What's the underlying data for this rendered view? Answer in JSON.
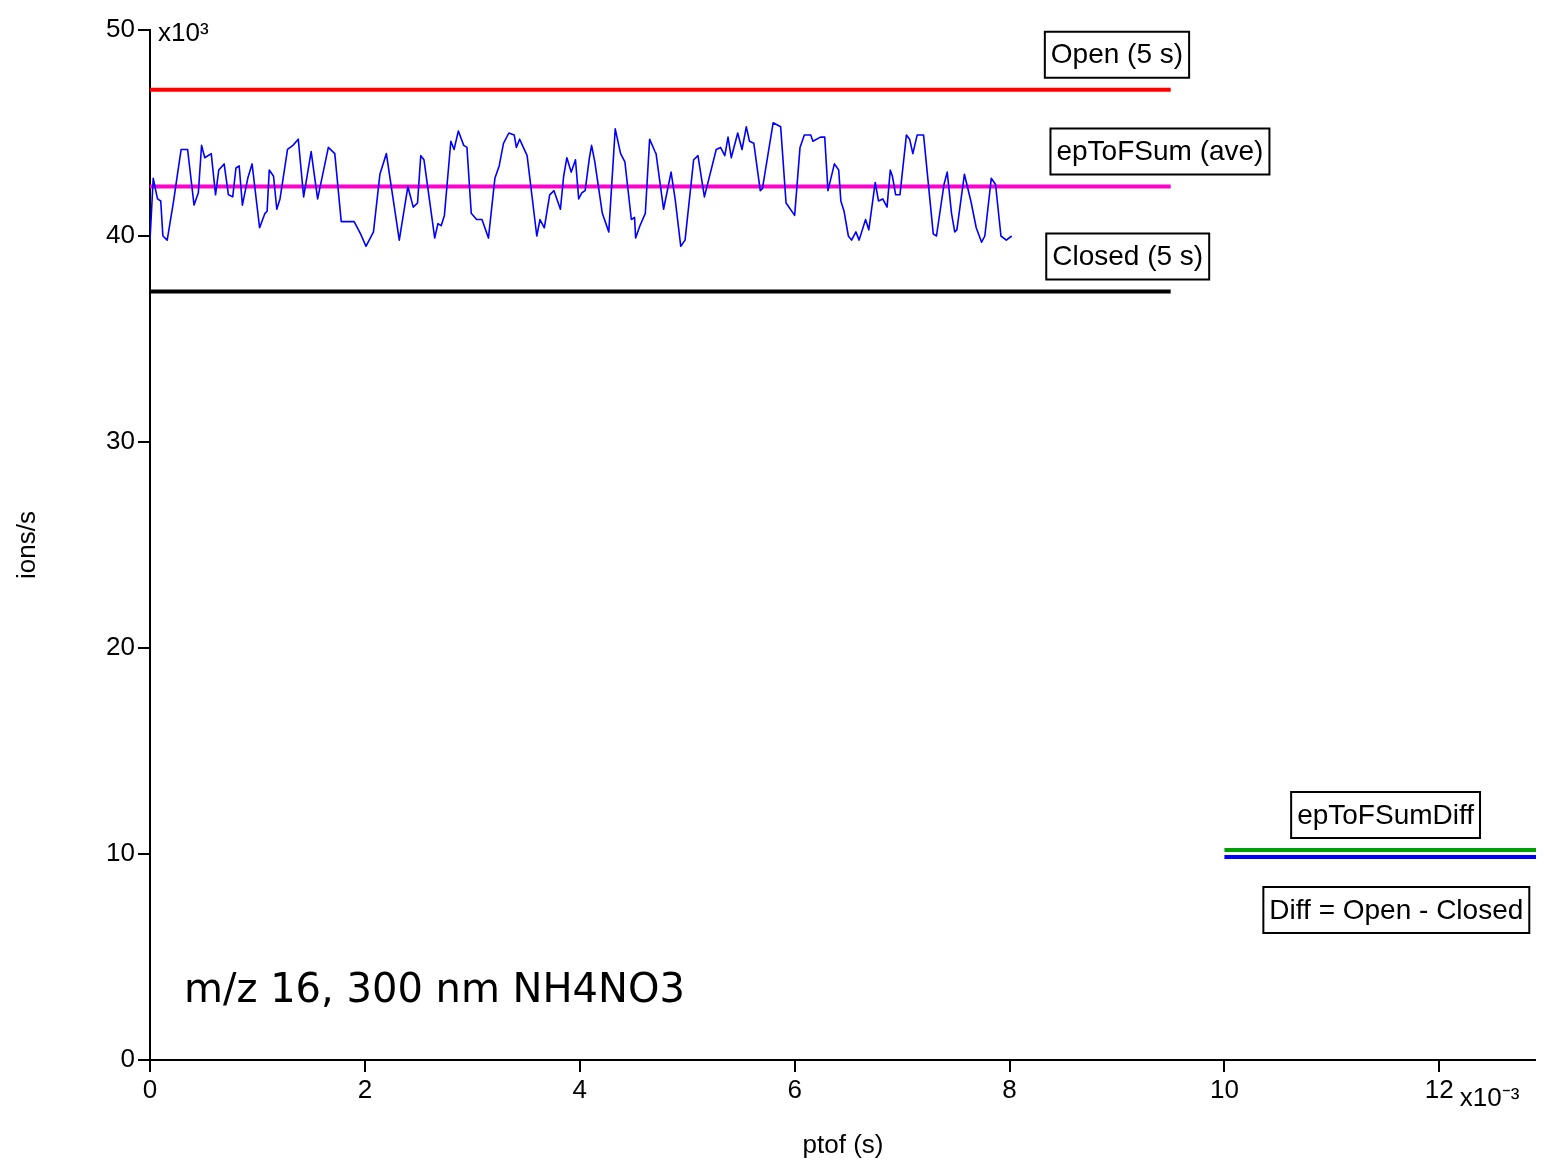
{
  "chart_data": {
    "type": "line",
    "xlabel": "ptof (s)",
    "ylabel": "ions/s",
    "xlim": [
      0,
      12.9
    ],
    "ylim": [
      0,
      50
    ],
    "xticks": [
      0,
      2,
      4,
      6,
      8,
      10,
      12
    ],
    "yticks": [
      0,
      10,
      20,
      30,
      40,
      50
    ],
    "grid": false,
    "legend": false,
    "series": [
      {
        "color": "#0000ff",
        "x": [
          0,
          0.03,
          0.07,
          0.1,
          0.12,
          0.16,
          0.22,
          0.25,
          0.29,
          0.35,
          0.41,
          0.45,
          0.48,
          0.51,
          0.57,
          0.61,
          0.64,
          0.69,
          0.73,
          0.77,
          0.8,
          0.83,
          0.86,
          0.91,
          0.95,
          1.02,
          1.07,
          1.09,
          1.11,
          1.15,
          1.18,
          1.21,
          1.28,
          1.33,
          1.38,
          1.43,
          1.5,
          1.56,
          1.66,
          1.72,
          1.78,
          1.85,
          1.9,
          1.96,
          2.01,
          2.08,
          2.14,
          2.2,
          2.26,
          2.32,
          2.4,
          2.45,
          2.49,
          2.52,
          2.55,
          2.65,
          2.68,
          2.71,
          2.74,
          2.78,
          2.8,
          2.83,
          2.87,
          2.92,
          2.95,
          2.99,
          3.04,
          3.09,
          3.15,
          3.21,
          3.25,
          3.29,
          3.34,
          3.39,
          3.41,
          3.44,
          3.51,
          3.6,
          3.63,
          3.67,
          3.72,
          3.76,
          3.82,
          3.85,
          3.88,
          3.92,
          3.96,
          3.99,
          4.02,
          4.05,
          4.09,
          4.11,
          4.14,
          4.21,
          4.27,
          4.33,
          4.38,
          4.42,
          4.48,
          4.51,
          4.52,
          4.56,
          4.61,
          4.65,
          4.7,
          4.71,
          4.78,
          4.85,
          4.89,
          4.94,
          4.98,
          5.06,
          5.1,
          5.16,
          5.27,
          5.31,
          5.35,
          5.38,
          5.41,
          5.47,
          5.51,
          5.55,
          5.58,
          5.62,
          5.68,
          5.7,
          5.8,
          5.87,
          5.92,
          6.0,
          6.05,
          6.09,
          6.15,
          6.17,
          6.24,
          6.28,
          6.31,
          6.37,
          6.41,
          6.43,
          6.46,
          6.5,
          6.53,
          6.57,
          6.6,
          6.66,
          6.69,
          6.75,
          6.78,
          6.82,
          6.86,
          6.89,
          6.91,
          6.94,
          6.98,
          7.04,
          7.07,
          7.1,
          7.14,
          7.2,
          7.29,
          7.32,
          7.39,
          7.42,
          7.46,
          7.49,
          7.51,
          7.58,
          7.64,
          7.69,
          7.74,
          7.77,
          7.83,
          7.87,
          7.92,
          7.97,
          8.02
        ],
        "values": [
          39.8,
          42.8,
          41.8,
          41.7,
          40.0,
          39.8,
          41.7,
          42.8,
          44.2,
          44.2,
          41.5,
          42.1,
          44.4,
          43.8,
          44.0,
          42.0,
          43.2,
          43.5,
          42.0,
          41.9,
          43.3,
          43.4,
          41.5,
          42.8,
          43.5,
          40.4,
          41.1,
          41.2,
          43.2,
          42.9,
          41.3,
          41.8,
          44.2,
          44.4,
          44.7,
          41.9,
          44.1,
          41.8,
          44.3,
          44.0,
          40.7,
          40.7,
          40.7,
          40.1,
          39.5,
          40.2,
          43.0,
          44.0,
          41.9,
          39.8,
          42.4,
          41.4,
          41.6,
          43.9,
          43.7,
          39.9,
          40.6,
          40.5,
          41.0,
          43.4,
          44.6,
          44.2,
          45.1,
          44.4,
          44.3,
          41.1,
          40.8,
          40.8,
          39.9,
          42.8,
          43.4,
          44.5,
          45.0,
          44.9,
          44.3,
          44.7,
          43.9,
          40.0,
          40.8,
          40.4,
          42.0,
          42.2,
          41.3,
          42.9,
          43.8,
          43.1,
          43.7,
          41.8,
          42.1,
          42.2,
          43.8,
          44.4,
          43.6,
          41.1,
          40.2,
          45.2,
          44.0,
          43.6,
          40.8,
          40.9,
          39.9,
          40.5,
          41.1,
          44.7,
          44.1,
          44.0,
          41.3,
          43.1,
          41.7,
          39.5,
          39.8,
          43.7,
          43.9,
          41.9,
          44.2,
          44.3,
          43.9,
          44.8,
          43.8,
          45.0,
          44.2,
          45.3,
          44.6,
          44.5,
          42.2,
          42.3,
          45.5,
          45.3,
          41.6,
          41.0,
          44.3,
          44.9,
          44.9,
          44.6,
          44.8,
          44.8,
          42.2,
          43.5,
          43.2,
          41.7,
          41.2,
          40.0,
          39.8,
          40.2,
          39.8,
          40.8,
          40.3,
          42.6,
          41.7,
          41.8,
          41.4,
          43.2,
          42.9,
          42.0,
          42.0,
          44.9,
          44.7,
          44.0,
          44.9,
          44.9,
          40.1,
          40.0,
          42.5,
          43.1,
          41.1,
          40.2,
          40.3,
          43.0,
          41.7,
          40.4,
          39.7,
          40.0,
          42.8,
          42.5,
          40.0,
          39.8,
          40.0
        ]
      },
      {
        "color": "#ff0000",
        "x": [
          0,
          9.5
        ],
        "values": [
          47.1,
          47.1
        ]
      },
      {
        "color": "#ff00cc",
        "x": [
          0,
          9.5
        ],
        "values": [
          42.4,
          42.4
        ]
      },
      {
        "color": "#000000",
        "x": [
          0,
          9.5
        ],
        "values": [
          37.3,
          37.3
        ]
      },
      {
        "color": "#00a000",
        "x": [
          10,
          12.9
        ],
        "values": [
          10.2,
          10.2
        ]
      },
      {
        "color": "#0000ff",
        "x": [
          10,
          12.9
        ],
        "values": [
          9.85,
          9.85
        ]
      }
    ],
    "annotations": [
      {
        "text": "Open (5 s)",
        "x": 9.0,
        "y": 47.1
      },
      {
        "text": "epToFSum (ave)",
        "x": 9.4,
        "y": 42.4
      },
      {
        "text": "Closed (5 s)",
        "x": 9.1,
        "y": 37.3
      },
      {
        "text": "epToFSumDiff",
        "x": 11.5,
        "y": 10.2
      },
      {
        "text": "Diff = Open - Closed",
        "x": 11.6,
        "y": 9.85
      },
      "x10³",
      "x10⁻³",
      "m/z 16, 300 nm NH4NO3"
    ]
  }
}
